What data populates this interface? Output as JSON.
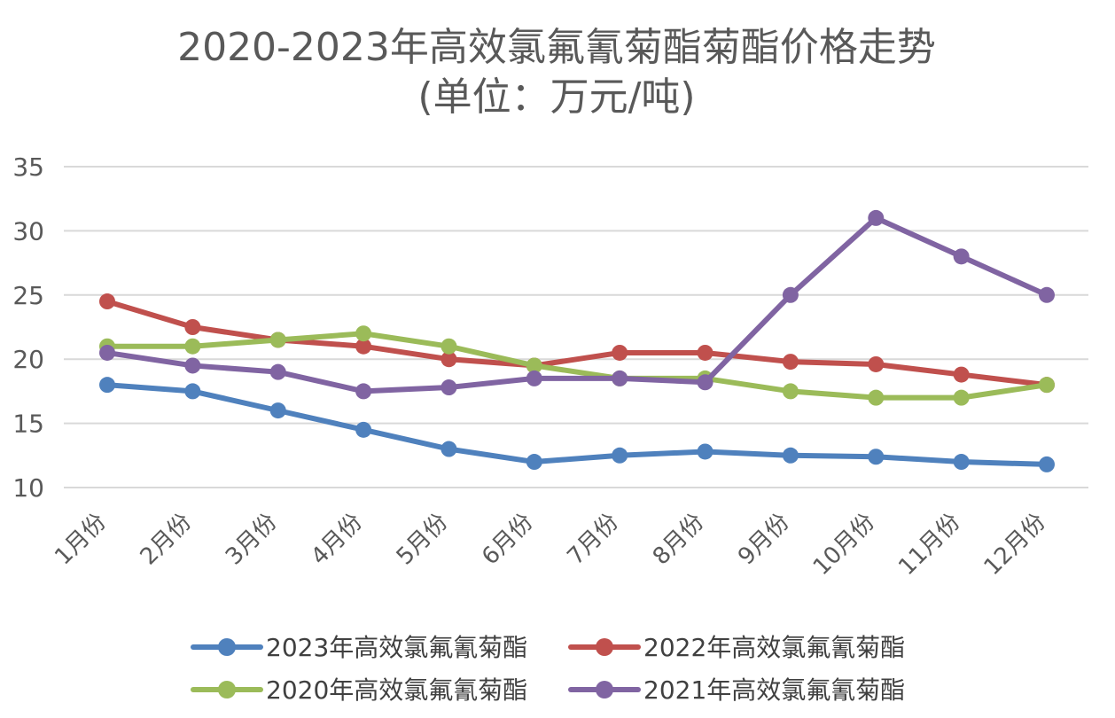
{
  "chart_data": {
    "type": "line",
    "title": "2020-2023年高效氯氟氰菊酯菊酯价格走势",
    "subtitle": "(单位：万元/吨)",
    "xlabel": "",
    "ylabel": "",
    "ylim": [
      10,
      35
    ],
    "yticks": [
      "35",
      "30",
      "25",
      "20",
      "15",
      "10"
    ],
    "categories": [
      "1月份",
      "2月份",
      "3月份",
      "4月份",
      "5月份",
      "6月份",
      "7月份",
      "8月份",
      "9月份",
      "10月份",
      "11月份",
      "12月份"
    ],
    "grid": true,
    "legend_position": "bottom",
    "series": [
      {
        "name": "2023年高效氯氟氰菊酯",
        "color": "#4F81BD",
        "values": [
          18,
          17.5,
          16,
          14.5,
          13,
          12,
          12.5,
          12.8,
          12.5,
          12.4,
          12,
          11.8
        ]
      },
      {
        "name": "2022年高效氯氟氰菊酯",
        "color": "#C0504D",
        "values": [
          24.5,
          22.5,
          21.5,
          21,
          20,
          19.5,
          20.5,
          20.5,
          19.8,
          19.6,
          18.8,
          18
        ]
      },
      {
        "name": "2020年高效氯氟氰菊酯",
        "color": "#9BBB59",
        "values": [
          21,
          21,
          21.5,
          22,
          21,
          19.5,
          18.5,
          18.5,
          17.5,
          17,
          17,
          18
        ]
      },
      {
        "name": "2021年高效氯氟氰菊酯",
        "color": "#8064A2",
        "values": [
          20.5,
          19.5,
          19,
          17.5,
          17.8,
          18.5,
          18.5,
          18.2,
          25,
          31,
          28,
          25
        ]
      }
    ]
  }
}
